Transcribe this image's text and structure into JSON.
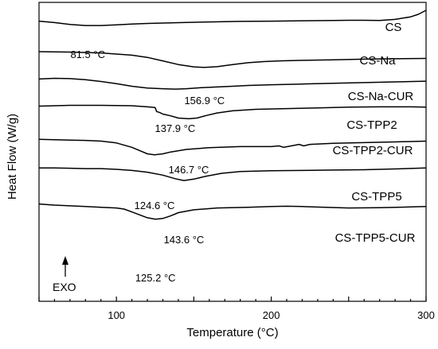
{
  "chart_data": {
    "type": "line",
    "title": "",
    "xlabel": "Temperature (°C)",
    "ylabel": "Heat Flow (W/g)",
    "xlim": [
      50,
      300
    ],
    "x_ticks": [
      100,
      200,
      300
    ],
    "y_ticks_shown": false,
    "grid": false,
    "direction_annotation": "EXO",
    "series": [
      {
        "name": "CS",
        "peak": {
          "x": 81.5,
          "label": "81.5 °C"
        },
        "points": [
          [
            50,
            23.6
          ],
          [
            60,
            25.4
          ],
          [
            70,
            27.7
          ],
          [
            80,
            29.1
          ],
          [
            90,
            29.1
          ],
          [
            100,
            28.2
          ],
          [
            110,
            27.2
          ],
          [
            120,
            26.5
          ],
          [
            140,
            25.5
          ],
          [
            160,
            24.6
          ],
          [
            180,
            23.9
          ],
          [
            200,
            23.6
          ],
          [
            220,
            23.1
          ],
          [
            240,
            22.7
          ],
          [
            250,
            22.5
          ],
          [
            260,
            22.5
          ],
          [
            270,
            22.7
          ],
          [
            280,
            21.4
          ],
          [
            290,
            18.2
          ],
          [
            295,
            15.0
          ],
          [
            300,
            10.0
          ]
        ]
      },
      {
        "name": "CS-Na",
        "peak": {
          "x": 156.9,
          "label": "156.9 °C"
        },
        "points": [
          [
            50,
            62.0
          ],
          [
            70,
            62.5
          ],
          [
            90,
            63.6
          ],
          [
            110,
            66.4
          ],
          [
            120,
            69.2
          ],
          [
            130,
            73.6
          ],
          [
            140,
            78.2
          ],
          [
            150,
            81.1
          ],
          [
            157,
            81.8
          ],
          [
            165,
            80.9
          ],
          [
            175,
            78.2
          ],
          [
            185,
            75.9
          ],
          [
            195,
            74.5
          ],
          [
            205,
            73.6
          ],
          [
            220,
            72.9
          ],
          [
            240,
            72.3
          ],
          [
            260,
            71.4
          ],
          [
            280,
            70.9
          ],
          [
            300,
            70.5
          ]
        ]
      },
      {
        "name": "CS-Na-CUR",
        "peak": {
          "x": 137.9,
          "label": "137.9 °C"
        },
        "points": [
          [
            50,
            96.4
          ],
          [
            60,
            95.5
          ],
          [
            70,
            95.9
          ],
          [
            80,
            97.3
          ],
          [
            90,
            99.5
          ],
          [
            100,
            102.3
          ],
          [
            110,
            105.5
          ],
          [
            120,
            107.7
          ],
          [
            130,
            108.6
          ],
          [
            138,
            109.1
          ],
          [
            145,
            108.6
          ],
          [
            155,
            107.3
          ],
          [
            165,
            106.4
          ],
          [
            175,
            105.5
          ],
          [
            185,
            104.5
          ],
          [
            200,
            103.6
          ],
          [
            220,
            102.7
          ],
          [
            240,
            101.8
          ],
          [
            260,
            100.9
          ],
          [
            280,
            100.0
          ],
          [
            300,
            99.1
          ]
        ]
      },
      {
        "name": "CS-TPP2",
        "peak": {
          "x": 146.7,
          "label": "146.7 °C"
        },
        "points": [
          [
            50,
            130.5
          ],
          [
            70,
            129.5
          ],
          [
            90,
            129.5
          ],
          [
            110,
            130.0
          ],
          [
            120,
            131.4
          ],
          [
            125,
            132.3
          ],
          [
            126,
            137.3
          ],
          [
            128,
            138.6
          ],
          [
            130,
            140.5
          ],
          [
            135,
            142.7
          ],
          [
            140,
            145.5
          ],
          [
            146.7,
            146.4
          ],
          [
            152,
            145.5
          ],
          [
            158,
            142.3
          ],
          [
            165,
            139.1
          ],
          [
            175,
            136.4
          ],
          [
            190,
            134.5
          ],
          [
            210,
            133.6
          ],
          [
            230,
            132.7
          ],
          [
            250,
            131.8
          ],
          [
            270,
            131.4
          ],
          [
            290,
            131.4
          ],
          [
            300,
            131.8
          ]
        ]
      },
      {
        "name": "CS-TPP2-CUR",
        "peak": {
          "x": 124.6,
          "label": "124.6 °C"
        },
        "points": [
          [
            50,
            172.3
          ],
          [
            60,
            172.7
          ],
          [
            70,
            173.2
          ],
          [
            80,
            173.6
          ],
          [
            90,
            174.5
          ],
          [
            100,
            176.8
          ],
          [
            110,
            182.3
          ],
          [
            115,
            186.4
          ],
          [
            120,
            190.5
          ],
          [
            124.6,
            191.8
          ],
          [
            130,
            190.5
          ],
          [
            135,
            188.2
          ],
          [
            145,
            185.0
          ],
          [
            160,
            182.7
          ],
          [
            180,
            181.4
          ],
          [
            200,
            181.4
          ],
          [
            205,
            180.5
          ],
          [
            208,
            182.3
          ],
          [
            212,
            180.9
          ],
          [
            218,
            178.6
          ],
          [
            221,
            180.5
          ],
          [
            225,
            178.6
          ],
          [
            240,
            177.3
          ],
          [
            260,
            176.4
          ],
          [
            280,
            175.5
          ],
          [
            300,
            174.5
          ]
        ]
      },
      {
        "name": "CS-TPP5",
        "peak": {
          "x": 143.6,
          "label": "143.6 °C"
        },
        "points": [
          [
            50,
            208.2
          ],
          [
            60,
            208.2
          ],
          [
            70,
            208.6
          ],
          [
            80,
            209.1
          ],
          [
            90,
            209.1
          ],
          [
            100,
            210.0
          ],
          [
            110,
            211.4
          ],
          [
            120,
            213.6
          ],
          [
            130,
            217.3
          ],
          [
            138,
            221.8
          ],
          [
            143.6,
            224.1
          ],
          [
            150,
            222.3
          ],
          [
            158,
            218.6
          ],
          [
            168,
            215.0
          ],
          [
            180,
            212.7
          ],
          [
            200,
            211.8
          ],
          [
            220,
            211.4
          ],
          [
            240,
            210.9
          ],
          [
            260,
            210.5
          ],
          [
            280,
            209.5
          ],
          [
            300,
            208.2
          ]
        ]
      },
      {
        "name": "CS-TPP5-CUR",
        "peak": {
          "x": 125.2,
          "label": "125.2 °C"
        },
        "points": [
          [
            50,
            253.6
          ],
          [
            60,
            255.0
          ],
          [
            70,
            255.9
          ],
          [
            80,
            256.8
          ],
          [
            90,
            257.7
          ],
          [
            100,
            258.6
          ],
          [
            105,
            260.0
          ],
          [
            110,
            263.6
          ],
          [
            115,
            267.3
          ],
          [
            120,
            270.9
          ],
          [
            125.2,
            272.7
          ],
          [
            130,
            271.8
          ],
          [
            135,
            268.6
          ],
          [
            140,
            264.5
          ],
          [
            150,
            260.9
          ],
          [
            165,
            258.6
          ],
          [
            185,
            257.7
          ],
          [
            200,
            256.8
          ],
          [
            210,
            256.4
          ],
          [
            220,
            256.8
          ],
          [
            235,
            257.7
          ],
          [
            250,
            258.6
          ],
          [
            270,
            258.2
          ],
          [
            290,
            257.3
          ],
          [
            300,
            256.8
          ]
        ]
      }
    ]
  }
}
